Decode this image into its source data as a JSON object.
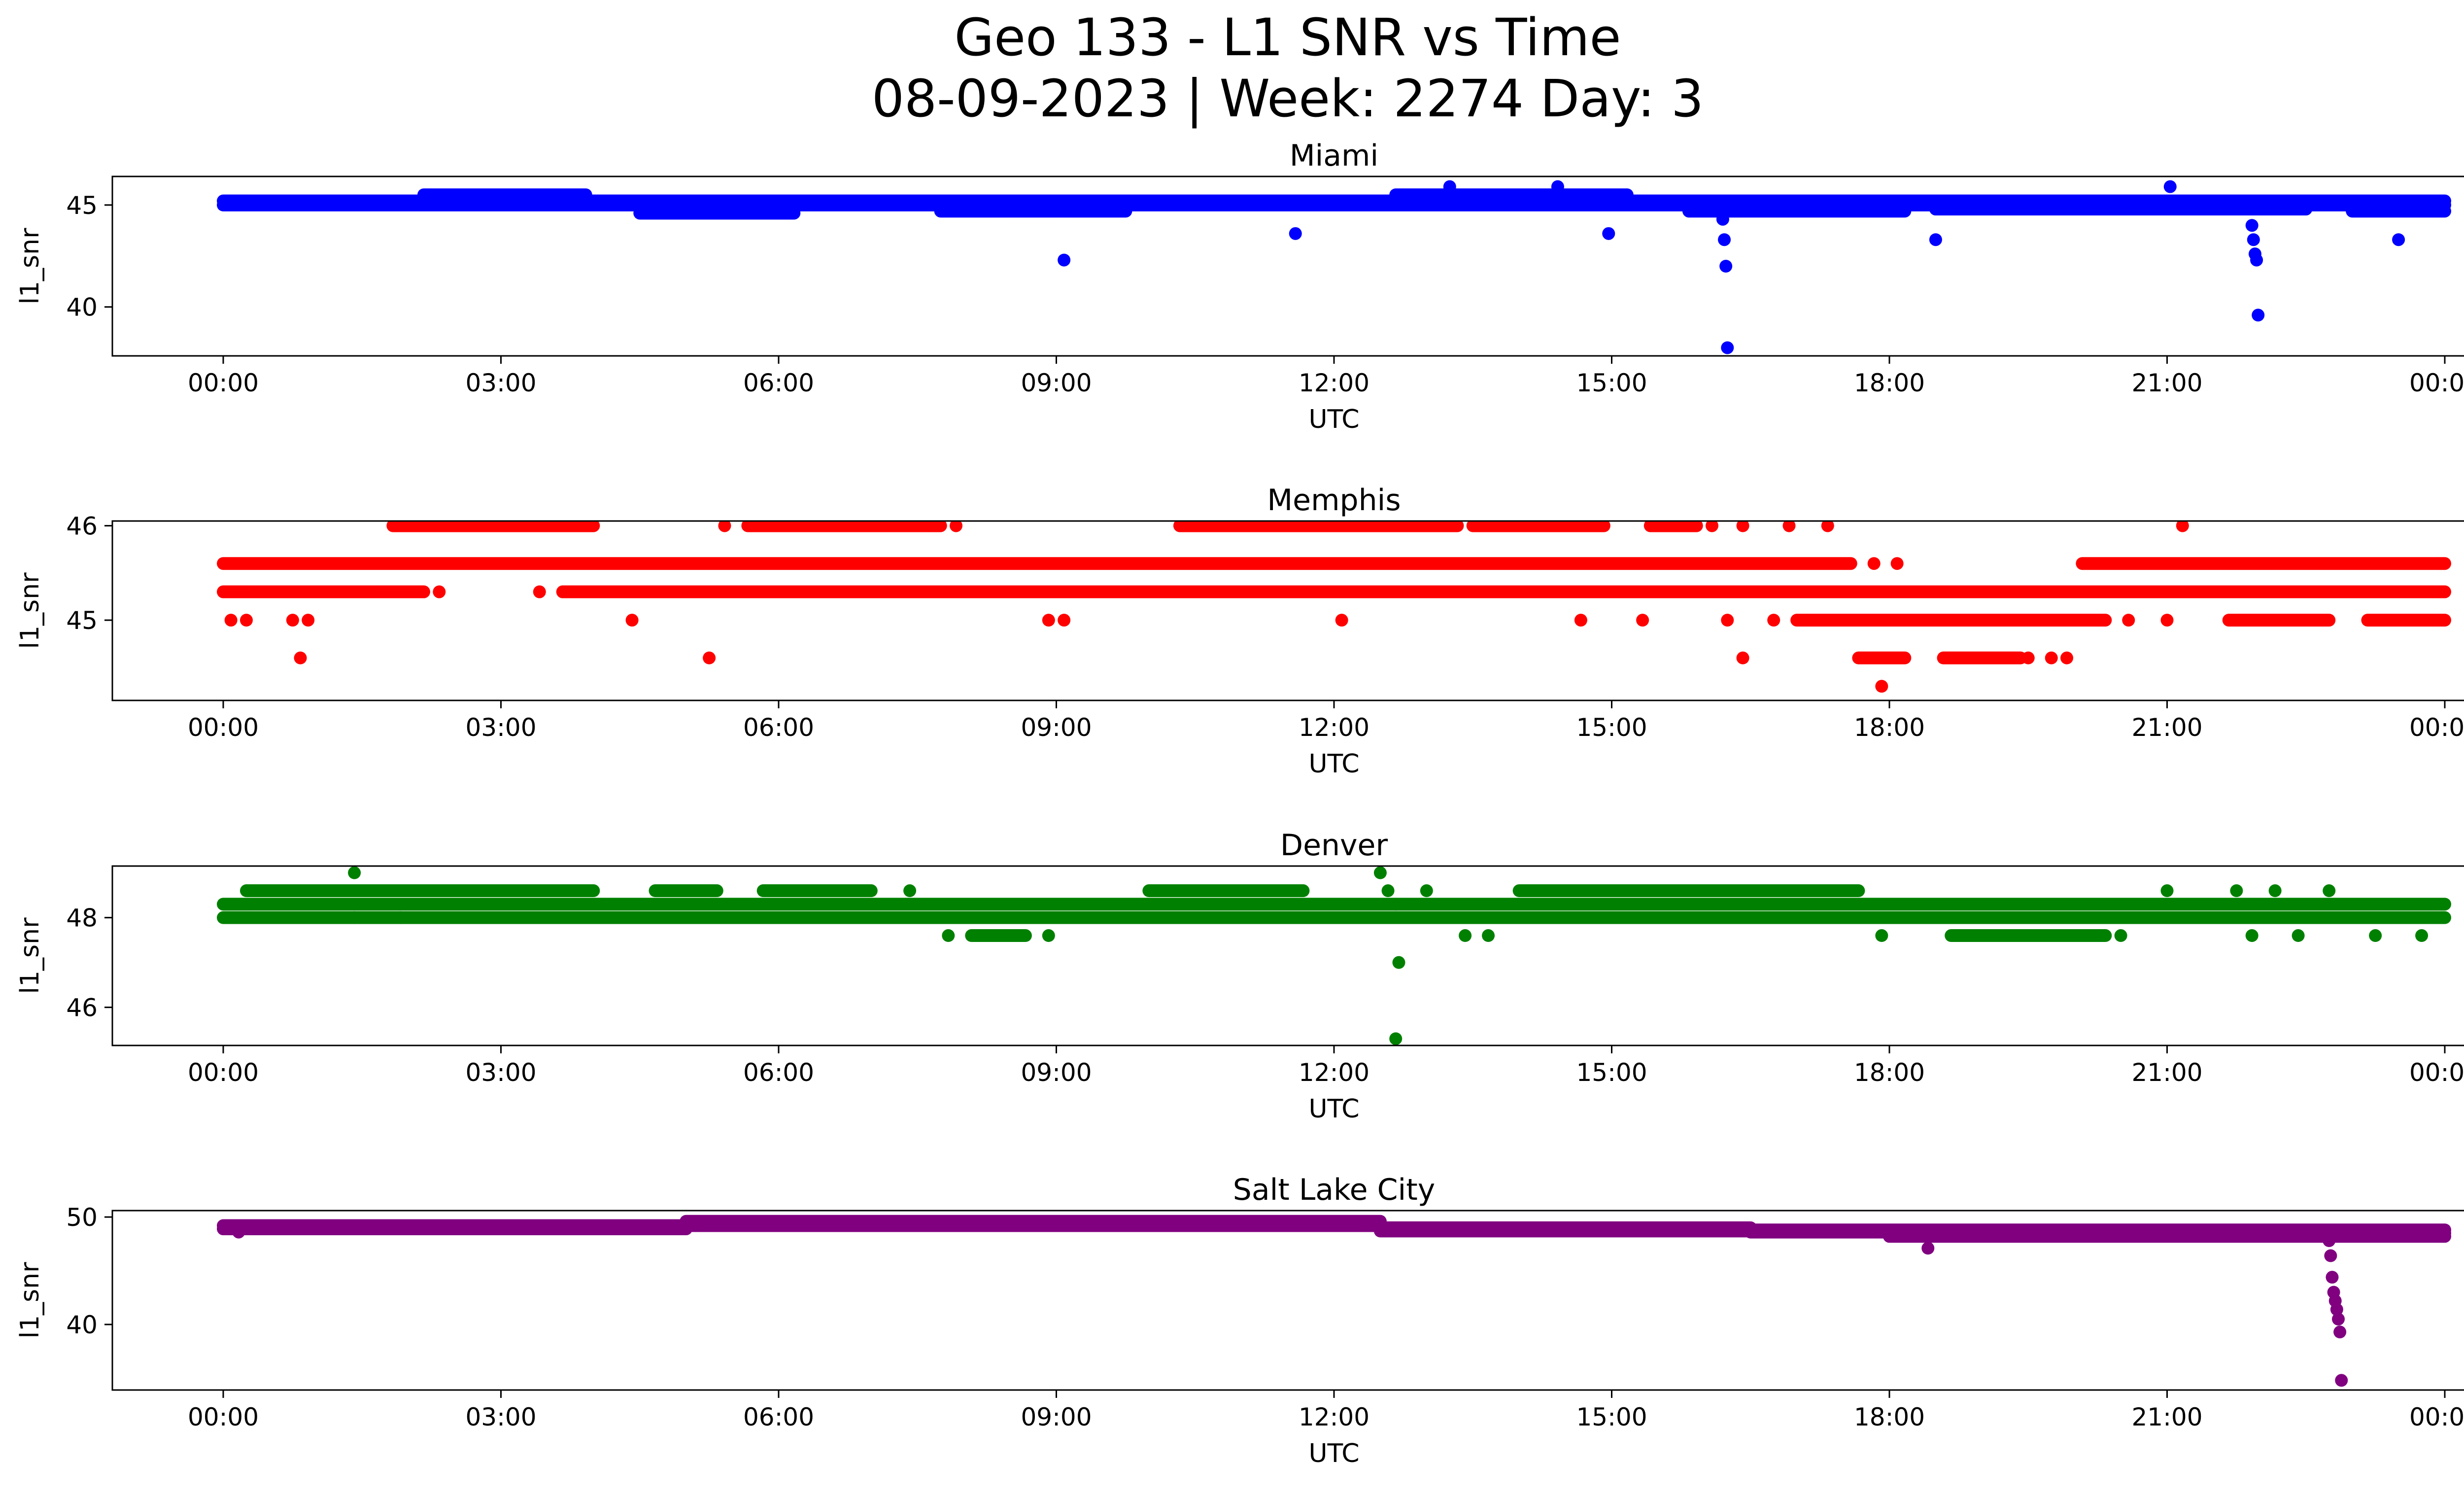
{
  "figure": {
    "title_line1": "Geo 133 - L1 SNR vs Time",
    "title_line2": "08-09-2023 | Week: 2274 Day: 3"
  },
  "chart_data": [
    {
      "type": "scatter",
      "title": "Miami",
      "xlabel": "UTC",
      "ylabel": "l1_snr",
      "color": "#0000ff",
      "xlim": [
        "2023-08-09 00:00",
        "2023-08-10 00:00"
      ],
      "ylim": [
        37.6,
        46.4
      ],
      "x_ticks": [
        "00:00",
        "03:00",
        "06:00",
        "09:00",
        "12:00",
        "15:00",
        "18:00",
        "21:00",
        "00:00"
      ],
      "y_ticks": [
        40,
        45
      ],
      "bands": [
        {
          "start": "00:00",
          "end": "24:00",
          "y": 45.0
        },
        {
          "start": "00:00",
          "end": "24:00",
          "y": 45.2
        },
        {
          "start": "02:10",
          "end": "03:55",
          "y": 45.5
        },
        {
          "start": "12:40",
          "end": "15:10",
          "y": 45.5
        },
        {
          "start": "04:30",
          "end": "06:10",
          "y": 44.6
        },
        {
          "start": "07:45",
          "end": "09:45",
          "y": 44.7
        },
        {
          "start": "15:50",
          "end": "18:10",
          "y": 44.7
        },
        {
          "start": "18:30",
          "end": "22:30",
          "y": 44.8
        },
        {
          "start": "23:00",
          "end": "24:00",
          "y": 44.7
        }
      ],
      "points": [
        {
          "t": "09:05",
          "v": 42.3
        },
        {
          "t": "11:35",
          "v": 43.6
        },
        {
          "t": "13:15",
          "v": 45.9
        },
        {
          "t": "14:25",
          "v": 45.9
        },
        {
          "t": "14:58",
          "v": 43.6
        },
        {
          "t": "16:12",
          "v": 44.3
        },
        {
          "t": "16:13",
          "v": 43.3
        },
        {
          "t": "16:14",
          "v": 42.0
        },
        {
          "t": "16:15",
          "v": 38.0
        },
        {
          "t": "18:30",
          "v": 43.3
        },
        {
          "t": "21:02",
          "v": 45.9
        },
        {
          "t": "21:55",
          "v": 44.0
        },
        {
          "t": "21:56",
          "v": 43.3
        },
        {
          "t": "21:57",
          "v": 42.6
        },
        {
          "t": "21:58",
          "v": 42.3
        },
        {
          "t": "21:59",
          "v": 39.6
        },
        {
          "t": "23:30",
          "v": 43.3
        }
      ]
    },
    {
      "type": "scatter",
      "title": "Memphis",
      "xlabel": "UTC",
      "ylabel": "l1_snr",
      "color": "#ff0000",
      "xlim": [
        "2023-08-09 00:00",
        "2023-08-10 00:00"
      ],
      "ylim": [
        44.15,
        46.05
      ],
      "x_ticks": [
        "00:00",
        "03:00",
        "06:00",
        "09:00",
        "12:00",
        "15:00",
        "18:00",
        "21:00",
        "00:00"
      ],
      "y_ticks": [
        45,
        46
      ],
      "bands": [
        {
          "start": "00:00",
          "end": "17:35",
          "y": 45.6
        },
        {
          "start": "20:05",
          "end": "24:00",
          "y": 45.6
        },
        {
          "start": "00:00",
          "end": "02:10",
          "y": 45.3
        },
        {
          "start": "03:40",
          "end": "24:00",
          "y": 45.3
        },
        {
          "start": "17:00",
          "end": "20:20",
          "y": 45.0
        },
        {
          "start": "21:40",
          "end": "22:45",
          "y": 45.0
        },
        {
          "start": "23:10",
          "end": "24:00",
          "y": 45.0
        },
        {
          "start": "01:50",
          "end": "04:00",
          "y": 46.0
        },
        {
          "start": "05:40",
          "end": "07:45",
          "y": 46.0
        },
        {
          "start": "10:20",
          "end": "13:20",
          "y": 46.0
        },
        {
          "start": "13:30",
          "end": "14:55",
          "y": 46.0
        },
        {
          "start": "15:25",
          "end": "15:55",
          "y": 46.0
        },
        {
          "start": "17:40",
          "end": "18:10",
          "y": 44.6
        },
        {
          "start": "18:35",
          "end": "19:25",
          "y": 44.6
        }
      ],
      "points": [
        {
          "t": "00:05",
          "v": 45.0
        },
        {
          "t": "00:15",
          "v": 45.0
        },
        {
          "t": "00:45",
          "v": 45.0
        },
        {
          "t": "00:55",
          "v": 45.0
        },
        {
          "t": "00:50",
          "v": 44.6
        },
        {
          "t": "02:20",
          "v": 45.3
        },
        {
          "t": "03:25",
          "v": 45.3
        },
        {
          "t": "04:25",
          "v": 45.0
        },
        {
          "t": "05:15",
          "v": 44.6
        },
        {
          "t": "05:25",
          "v": 46.0
        },
        {
          "t": "07:55",
          "v": 46.0
        },
        {
          "t": "08:55",
          "v": 45.0
        },
        {
          "t": "09:05",
          "v": 45.0
        },
        {
          "t": "12:05",
          "v": 45.0
        },
        {
          "t": "14:40",
          "v": 45.0
        },
        {
          "t": "15:20",
          "v": 45.0
        },
        {
          "t": "16:05",
          "v": 46.0
        },
        {
          "t": "16:25",
          "v": 46.0
        },
        {
          "t": "16:55",
          "v": 46.0
        },
        {
          "t": "17:20",
          "v": 46.0
        },
        {
          "t": "16:25",
          "v": 44.6
        },
        {
          "t": "16:15",
          "v": 45.0
        },
        {
          "t": "16:45",
          "v": 45.0
        },
        {
          "t": "17:50",
          "v": 45.6
        },
        {
          "t": "18:05",
          "v": 45.6
        },
        {
          "t": "17:55",
          "v": 44.3
        },
        {
          "t": "19:30",
          "v": 44.6
        },
        {
          "t": "19:45",
          "v": 44.6
        },
        {
          "t": "19:55",
          "v": 44.6
        },
        {
          "t": "20:35",
          "v": 45.0
        },
        {
          "t": "21:00",
          "v": 45.0
        },
        {
          "t": "21:10",
          "v": 46.0
        }
      ]
    },
    {
      "type": "scatter",
      "title": "Denver",
      "xlabel": "UTC",
      "ylabel": "l1_snr",
      "color": "#008000",
      "xlim": [
        "2023-08-09 00:00",
        "2023-08-10 00:00"
      ],
      "ylim": [
        45.15,
        49.15
      ],
      "x_ticks": [
        "00:00",
        "03:00",
        "06:00",
        "09:00",
        "12:00",
        "15:00",
        "18:00",
        "21:00",
        "00:00"
      ],
      "y_ticks": [
        46,
        48
      ],
      "bands": [
        {
          "start": "00:00",
          "end": "24:00",
          "y": 48.0
        },
        {
          "start": "00:00",
          "end": "24:00",
          "y": 48.3
        },
        {
          "start": "00:15",
          "end": "04:00",
          "y": 48.6
        },
        {
          "start": "04:40",
          "end": "05:20",
          "y": 48.6
        },
        {
          "start": "05:50",
          "end": "07:00",
          "y": 48.6
        },
        {
          "start": "10:00",
          "end": "11:40",
          "y": 48.6
        },
        {
          "start": "14:00",
          "end": "17:40",
          "y": 48.6
        },
        {
          "start": "18:40",
          "end": "20:20",
          "y": 47.6
        },
        {
          "start": "08:05",
          "end": "08:40",
          "y": 47.6
        }
      ],
      "points": [
        {
          "t": "01:25",
          "v": 49.0
        },
        {
          "t": "01:25",
          "v": 48.0
        },
        {
          "t": "01:55",
          "v": 48.0
        },
        {
          "t": "07:25",
          "v": 48.6
        },
        {
          "t": "07:50",
          "v": 47.6
        },
        {
          "t": "08:55",
          "v": 47.6
        },
        {
          "t": "12:30",
          "v": 49.0
        },
        {
          "t": "12:35",
          "v": 48.6
        },
        {
          "t": "12:40",
          "v": 48.3
        },
        {
          "t": "12:42",
          "v": 47.0
        },
        {
          "t": "12:40",
          "v": 45.3
        },
        {
          "t": "13:00",
          "v": 48.6
        },
        {
          "t": "13:25",
          "v": 47.6
        },
        {
          "t": "13:40",
          "v": 47.6
        },
        {
          "t": "17:55",
          "v": 47.6
        },
        {
          "t": "20:30",
          "v": 47.6
        },
        {
          "t": "21:00",
          "v": 48.6
        },
        {
          "t": "21:45",
          "v": 48.6
        },
        {
          "t": "21:55",
          "v": 47.6
        },
        {
          "t": "22:10",
          "v": 48.6
        },
        {
          "t": "22:25",
          "v": 47.6
        },
        {
          "t": "22:45",
          "v": 48.6
        },
        {
          "t": "23:15",
          "v": 47.6
        },
        {
          "t": "23:45",
          "v": 47.6
        }
      ]
    },
    {
      "type": "scatter",
      "title": "Salt Lake City",
      "xlabel": "UTC",
      "ylabel": "l1_snr",
      "color": "#800080",
      "xlim": [
        "2023-08-09 00:00",
        "2023-08-10 00:00"
      ],
      "ylim": [
        33.9,
        50.6
      ],
      "x_ticks": [
        "00:00",
        "03:00",
        "06:00",
        "09:00",
        "12:00",
        "15:00",
        "18:00",
        "21:00",
        "00:00"
      ],
      "y_ticks": [
        40,
        50
      ],
      "bands": [
        {
          "start": "00:00",
          "end": "05:00",
          "y": 49.2
        },
        {
          "start": "05:00",
          "end": "12:30",
          "y": 49.6
        },
        {
          "start": "12:30",
          "end": "16:30",
          "y": 49.0
        },
        {
          "start": "16:30",
          "end": "18:00",
          "y": 48.6
        },
        {
          "start": "18:00",
          "end": "24:00",
          "y": 48.5
        },
        {
          "start": "00:00",
          "end": "05:00",
          "y": 48.9
        },
        {
          "start": "05:00",
          "end": "12:30",
          "y": 49.2
        },
        {
          "start": "12:30",
          "end": "16:30",
          "y": 48.7
        },
        {
          "start": "16:30",
          "end": "24:00",
          "y": 48.8
        },
        {
          "start": "18:00",
          "end": "24:00",
          "y": 48.2
        }
      ],
      "points": [
        {
          "t": "00:10",
          "v": 48.6
        },
        {
          "t": "18:25",
          "v": 47.1
        },
        {
          "t": "22:45",
          "v": 47.8
        },
        {
          "t": "22:46",
          "v": 46.4
        },
        {
          "t": "22:47",
          "v": 44.4
        },
        {
          "t": "22:48",
          "v": 43.0
        },
        {
          "t": "22:49",
          "v": 42.2
        },
        {
          "t": "22:50",
          "v": 41.4
        },
        {
          "t": "22:51",
          "v": 40.5
        },
        {
          "t": "22:52",
          "v": 39.3
        },
        {
          "t": "22:53",
          "v": 34.8
        }
      ]
    }
  ]
}
